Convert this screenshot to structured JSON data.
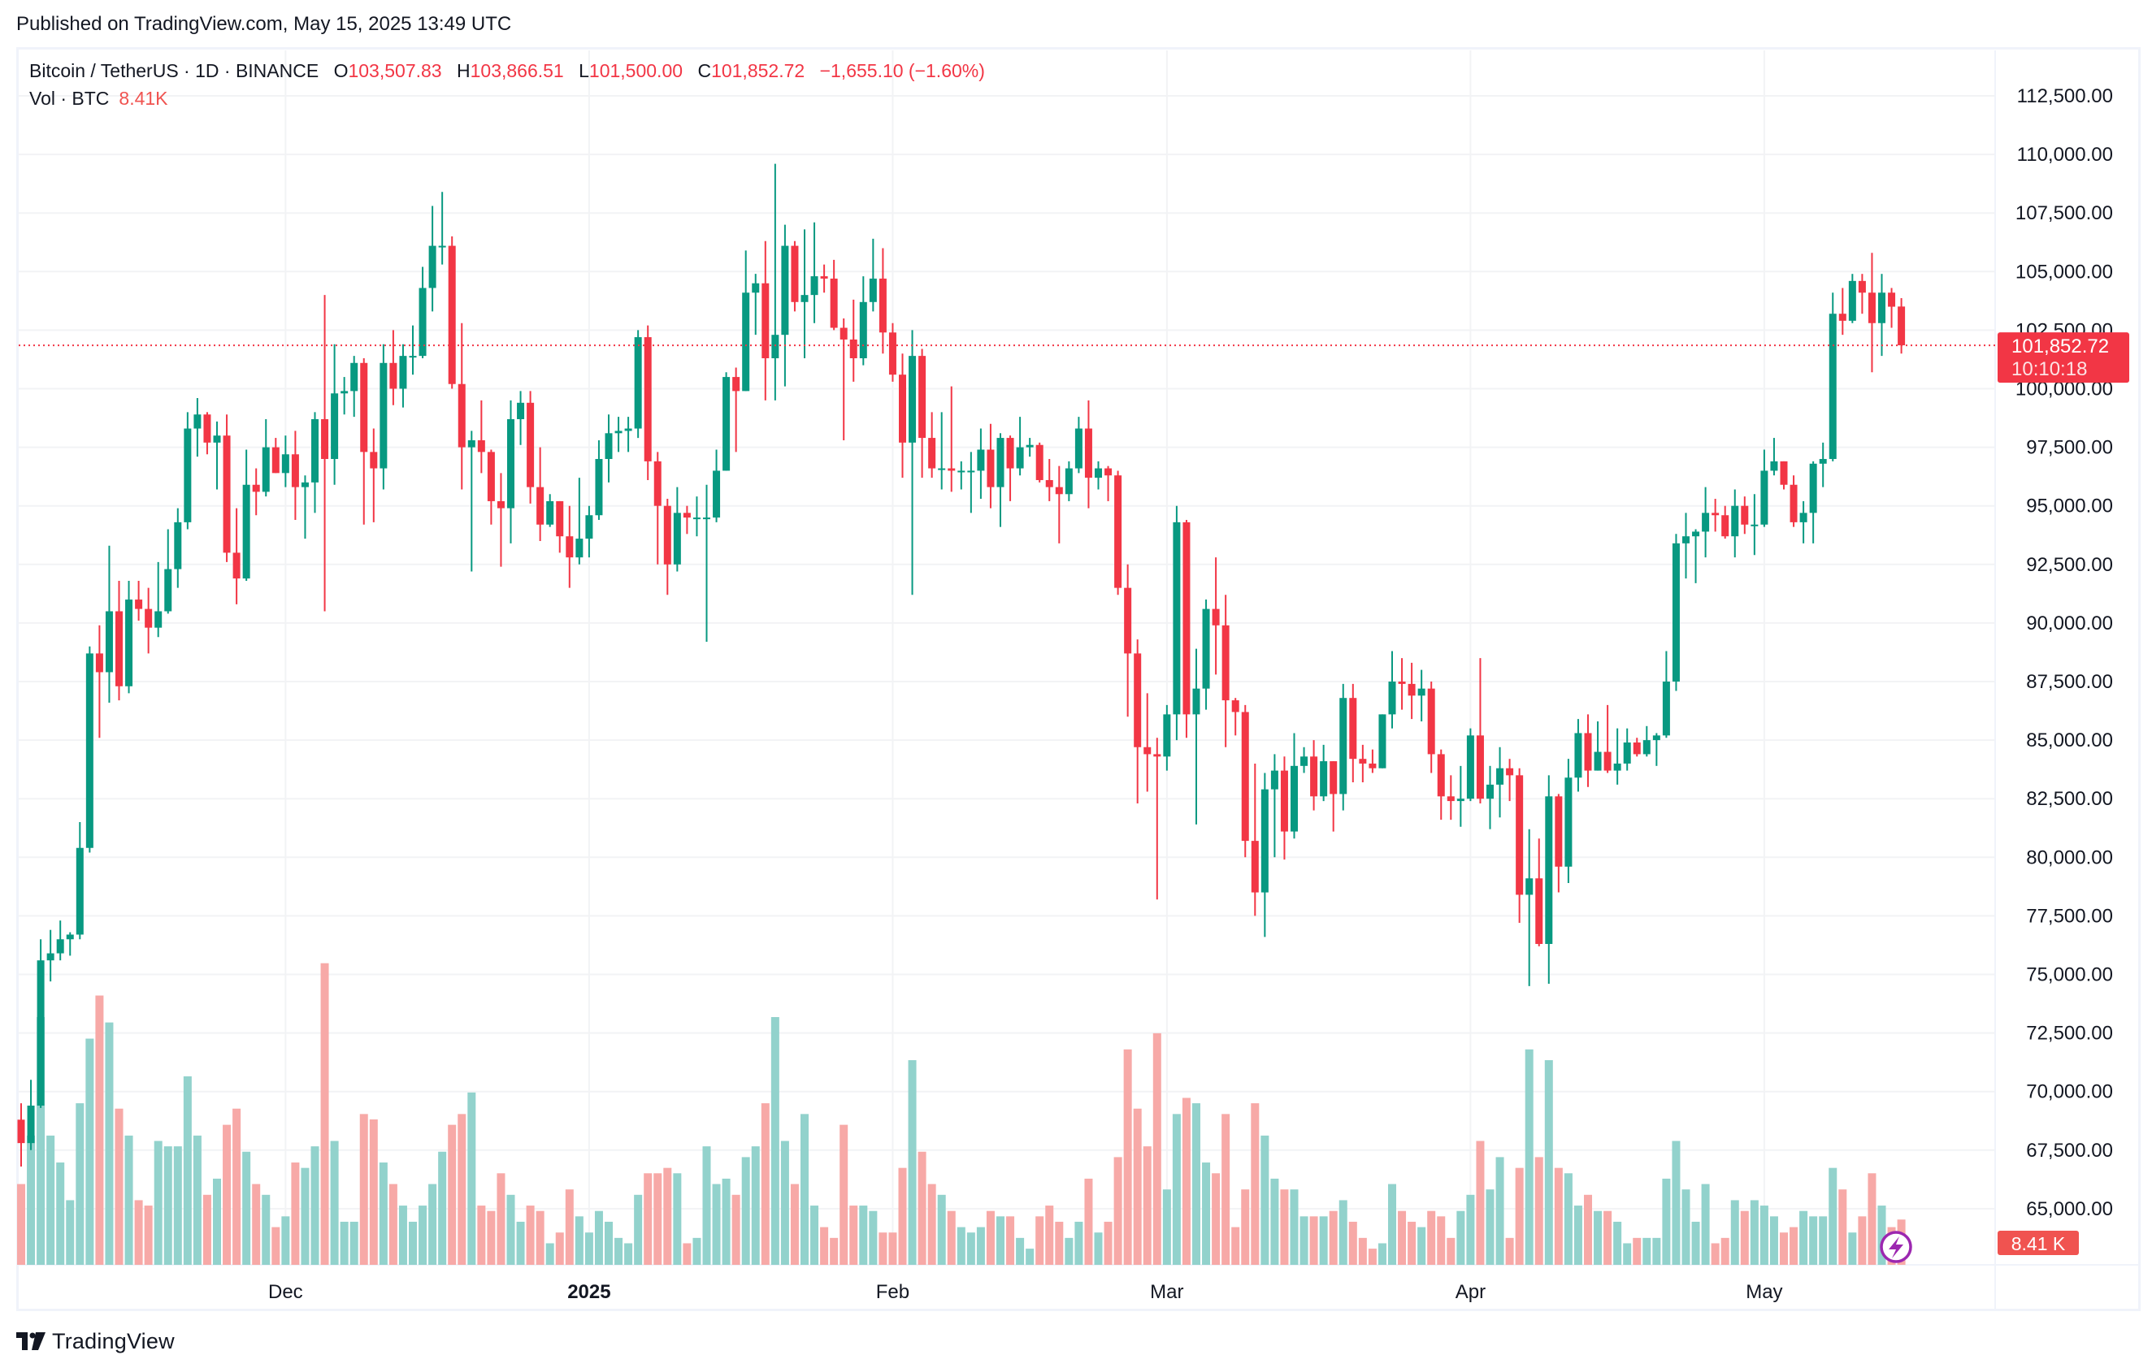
{
  "header": {
    "published": "Published on TradingView.com, May 15, 2025 13:49 UTC"
  },
  "legend": {
    "symbol": "Bitcoin / TetherUS · 1D · BINANCE",
    "o_label": "O",
    "o": "103,507.83",
    "h_label": "H",
    "h": "103,866.51",
    "l_label": "L",
    "l": "101,500.00",
    "c_label": "C",
    "c": "101,852.72",
    "change": "−1,655.10 (−1.60%)",
    "vol_label": "Vol · BTC",
    "vol": "8.41K"
  },
  "price_label": {
    "price": "101,852.72",
    "countdown": "10:10:18"
  },
  "volume_label": "8.41 K",
  "footer": {
    "brand": "TradingView"
  },
  "colors": {
    "up": "#089981",
    "down": "#F23645",
    "up_volume": "#92D2CC",
    "down_volume": "#F7A9A7",
    "event_icon": "#9C27B0"
  },
  "chart_data": {
    "type": "candlestick",
    "title": "Bitcoin / TetherUS · 1D · BINANCE",
    "ylim": [
      62500,
      113750
    ],
    "y_ticks": [
      "112,500.00",
      "110,000.00",
      "107,500.00",
      "105,000.00",
      "102,500.00",
      "100,000.00",
      "97,500.00",
      "95,000.00",
      "92,500.00",
      "90,000.00",
      "87,500.00",
      "85,000.00",
      "82,500.00",
      "80,000.00",
      "77,500.00",
      "75,000.00",
      "72,500.00",
      "70,000.00",
      "67,500.00",
      "65,000.00"
    ],
    "x_ticks": [
      {
        "label": "Dec",
        "date": "2024-12-01",
        "bold": false
      },
      {
        "label": "2025",
        "date": "2025-01-01",
        "bold": true
      },
      {
        "label": "Feb",
        "date": "2025-02-01",
        "bold": false
      },
      {
        "label": "Mar",
        "date": "2025-03-01",
        "bold": false
      },
      {
        "label": "Apr",
        "date": "2025-04-01",
        "bold": false
      },
      {
        "label": "May",
        "date": "2025-05-01",
        "bold": false
      }
    ],
    "start_date": "2024-11-04",
    "volume_unit": "K BTC",
    "columns": [
      "open",
      "high",
      "low",
      "close",
      "volume"
    ],
    "candles": [
      [
        68800,
        69500,
        66800,
        67800,
        15
      ],
      [
        67800,
        70500,
        67500,
        69400,
        24
      ],
      [
        69400,
        76500,
        69300,
        75600,
        46
      ],
      [
        75600,
        76900,
        74700,
        75900,
        24
      ],
      [
        75900,
        77300,
        75600,
        76500,
        19
      ],
      [
        76500,
        76800,
        75800,
        76700,
        12
      ],
      [
        76700,
        81500,
        76500,
        80400,
        30
      ],
      [
        80400,
        89000,
        80200,
        88700,
        42
      ],
      [
        88700,
        89900,
        85100,
        87900,
        50
      ],
      [
        87900,
        93300,
        86600,
        90500,
        45
      ],
      [
        90500,
        91800,
        86700,
        87300,
        29
      ],
      [
        87300,
        91800,
        87000,
        91000,
        24
      ],
      [
        91000,
        91800,
        90100,
        90600,
        12
      ],
      [
        90600,
        91500,
        88700,
        89800,
        11
      ],
      [
        89800,
        92600,
        89400,
        90500,
        23
      ],
      [
        90500,
        94000,
        90400,
        92300,
        22
      ],
      [
        92300,
        94900,
        91500,
        94300,
        22
      ],
      [
        94300,
        99000,
        94000,
        98300,
        35
      ],
      [
        98300,
        99600,
        97100,
        98900,
        24
      ],
      [
        98900,
        99000,
        97200,
        97700,
        13
      ],
      [
        97700,
        98600,
        95700,
        98000,
        16
      ],
      [
        98000,
        98900,
        92600,
        93000,
        26
      ],
      [
        93000,
        94900,
        90800,
        91900,
        29
      ],
      [
        91900,
        97400,
        91800,
        95900,
        21
      ],
      [
        95900,
        96600,
        94600,
        95600,
        15
      ],
      [
        95600,
        98700,
        95400,
        97500,
        13
      ],
      [
        97500,
        97900,
        96400,
        96400,
        7
      ],
      [
        96400,
        98000,
        95800,
        97200,
        9
      ],
      [
        97200,
        98200,
        94400,
        95800,
        19
      ],
      [
        95800,
        96300,
        93600,
        96000,
        18
      ],
      [
        96000,
        99000,
        94700,
        98700,
        22
      ],
      [
        98700,
        104000,
        90500,
        97000,
        56
      ],
      [
        97000,
        101900,
        95900,
        99800,
        23
      ],
      [
        99800,
        100500,
        98900,
        99900,
        8
      ],
      [
        99900,
        101400,
        98800,
        101100,
        8
      ],
      [
        101100,
        101300,
        94200,
        97300,
        28
      ],
      [
        97300,
        98300,
        94300,
        96600,
        27
      ],
      [
        96600,
        101900,
        95700,
        101100,
        19
      ],
      [
        101100,
        102500,
        99300,
        100000,
        15
      ],
      [
        100000,
        101900,
        99200,
        101400,
        11
      ],
      [
        101400,
        102700,
        100600,
        101400,
        8
      ],
      [
        101400,
        105200,
        101300,
        104300,
        11
      ],
      [
        104300,
        107800,
        103300,
        106100,
        15
      ],
      [
        106100,
        108400,
        105300,
        106100,
        21
      ],
      [
        106100,
        106500,
        100000,
        100200,
        26
      ],
      [
        100200,
        102800,
        95700,
        97500,
        28
      ],
      [
        97500,
        98200,
        92200,
        97800,
        32
      ],
      [
        97800,
        99500,
        96400,
        97300,
        11
      ],
      [
        97300,
        97400,
        94200,
        95200,
        10
      ],
      [
        95200,
        96400,
        92400,
        94900,
        17
      ],
      [
        94900,
        99500,
        93400,
        98700,
        13
      ],
      [
        98700,
        99900,
        97600,
        99400,
        8
      ],
      [
        99400,
        99900,
        95100,
        95800,
        11
      ],
      [
        95800,
        97500,
        93500,
        94200,
        10
      ],
      [
        94200,
        95500,
        94100,
        95200,
        4
      ],
      [
        95200,
        95200,
        93000,
        93700,
        6
      ],
      [
        93700,
        95000,
        91500,
        92800,
        14
      ],
      [
        92800,
        96200,
        92500,
        93600,
        9
      ],
      [
        93600,
        95000,
        92800,
        94600,
        6
      ],
      [
        94600,
        97800,
        94400,
        97000,
        10
      ],
      [
        97000,
        98900,
        96000,
        98100,
        8
      ],
      [
        98100,
        98800,
        97300,
        98200,
        5
      ],
      [
        98200,
        98800,
        97300,
        98300,
        4
      ],
      [
        98300,
        102500,
        97900,
        102200,
        13
      ],
      [
        102200,
        102700,
        96100,
        96900,
        17
      ],
      [
        96900,
        97300,
        92500,
        95000,
        17
      ],
      [
        95000,
        95300,
        91200,
        92500,
        18
      ],
      [
        92500,
        95800,
        92200,
        94700,
        17
      ],
      [
        94700,
        95000,
        93800,
        94500,
        4
      ],
      [
        94500,
        95400,
        93700,
        94500,
        5
      ],
      [
        94500,
        95900,
        89200,
        94500,
        22
      ],
      [
        94500,
        97400,
        94300,
        96500,
        15
      ],
      [
        96500,
        100700,
        96500,
        100500,
        16
      ],
      [
        100500,
        100900,
        97300,
        99900,
        13
      ],
      [
        99900,
        105900,
        99900,
        104100,
        20
      ],
      [
        104100,
        104900,
        102300,
        104500,
        22
      ],
      [
        104500,
        106300,
        99500,
        101300,
        30
      ],
      [
        101300,
        109600,
        99500,
        102300,
        46
      ],
      [
        102300,
        107000,
        100100,
        106100,
        23
      ],
      [
        106100,
        106300,
        103300,
        103700,
        15
      ],
      [
        103700,
        106800,
        101300,
        104000,
        28
      ],
      [
        104000,
        107100,
        102800,
        104800,
        11
      ],
      [
        104800,
        105300,
        104100,
        104700,
        7
      ],
      [
        104700,
        105500,
        102500,
        102600,
        5
      ],
      [
        102600,
        103000,
        97800,
        102100,
        26
      ],
      [
        102100,
        103800,
        100300,
        101300,
        11
      ],
      [
        101300,
        104800,
        101000,
        103700,
        11
      ],
      [
        103700,
        106400,
        103300,
        104700,
        10
      ],
      [
        104700,
        106000,
        101500,
        102400,
        6
      ],
      [
        102400,
        102800,
        100300,
        100600,
        6
      ],
      [
        100600,
        101500,
        96200,
        97700,
        18
      ],
      [
        97700,
        102500,
        91200,
        101400,
        38
      ],
      [
        101400,
        101700,
        96200,
        97900,
        21
      ],
      [
        97900,
        99000,
        96200,
        96600,
        15
      ],
      [
        96600,
        99000,
        95700,
        96600,
        13
      ],
      [
        96600,
        100100,
        95600,
        96500,
        10
      ],
      [
        96500,
        96900,
        95700,
        96500,
        7
      ],
      [
        96500,
        97300,
        94700,
        96500,
        6
      ],
      [
        96500,
        98300,
        95300,
        97400,
        7
      ],
      [
        97400,
        98500,
        94900,
        95800,
        10
      ],
      [
        95800,
        98100,
        94100,
        97900,
        9
      ],
      [
        97900,
        98000,
        95200,
        96600,
        9
      ],
      [
        96600,
        98800,
        96300,
        97500,
        5
      ],
      [
        97500,
        97900,
        97100,
        97600,
        3
      ],
      [
        97600,
        97700,
        96000,
        96100,
        9
      ],
      [
        96100,
        97000,
        95200,
        95800,
        11
      ],
      [
        95800,
        96700,
        93400,
        95500,
        8
      ],
      [
        95500,
        96900,
        95200,
        96600,
        5
      ],
      [
        96600,
        98800,
        96400,
        98300,
        8
      ],
      [
        98300,
        99500,
        94900,
        96200,
        16
      ],
      [
        96200,
        96900,
        95700,
        96600,
        6
      ],
      [
        96600,
        96700,
        95200,
        96300,
        8
      ],
      [
        96300,
        96500,
        91200,
        91500,
        20
      ],
      [
        91500,
        92500,
        86000,
        88700,
        40
      ],
      [
        88700,
        89300,
        82300,
        84700,
        29
      ],
      [
        84700,
        87000,
        82800,
        84400,
        22
      ],
      [
        84400,
        85100,
        78200,
        84300,
        43
      ],
      [
        84300,
        86500,
        83700,
        86100,
        14
      ],
      [
        86100,
        95000,
        85000,
        94300,
        28
      ],
      [
        94300,
        94400,
        85100,
        86100,
        31
      ],
      [
        86100,
        88900,
        81400,
        87200,
        30
      ],
      [
        87200,
        91000,
        86300,
        90600,
        19
      ],
      [
        90600,
        92800,
        87800,
        89900,
        17
      ],
      [
        89900,
        91200,
        84700,
        86700,
        28
      ],
      [
        86700,
        86800,
        85200,
        86200,
        7
      ],
      [
        86200,
        86500,
        80000,
        80700,
        14
      ],
      [
        80700,
        84000,
        77500,
        78500,
        30
      ],
      [
        78500,
        83600,
        76600,
        82900,
        24
      ],
      [
        82900,
        84400,
        80000,
        83700,
        16
      ],
      [
        83700,
        84300,
        79900,
        81100,
        14
      ],
      [
        81100,
        85300,
        80800,
        83900,
        14
      ],
      [
        83900,
        84700,
        83600,
        84300,
        9
      ],
      [
        84300,
        85000,
        82000,
        82600,
        9
      ],
      [
        82600,
        84800,
        82400,
        84100,
        9
      ],
      [
        84100,
        84100,
        81100,
        82700,
        10
      ],
      [
        82700,
        87400,
        82000,
        86800,
        12
      ],
      [
        86800,
        87400,
        83200,
        84200,
        8
      ],
      [
        84200,
        84800,
        83200,
        84000,
        5
      ],
      [
        84000,
        84600,
        83600,
        83800,
        3
      ],
      [
        83800,
        86100,
        83800,
        86100,
        4
      ],
      [
        86100,
        88800,
        85500,
        87500,
        15
      ],
      [
        87500,
        88500,
        86300,
        87400,
        10
      ],
      [
        87400,
        88300,
        85900,
        86900,
        8
      ],
      [
        86900,
        88000,
        85800,
        87200,
        7
      ],
      [
        87200,
        87500,
        83600,
        84400,
        10
      ],
      [
        84400,
        84600,
        81600,
        82600,
        9
      ],
      [
        82600,
        83500,
        81600,
        82400,
        5
      ],
      [
        82400,
        83900,
        81300,
        82500,
        10
      ],
      [
        82500,
        85500,
        82400,
        85200,
        13
      ],
      [
        85200,
        88500,
        82300,
        82500,
        23
      ],
      [
        82500,
        83900,
        81200,
        83100,
        14
      ],
      [
        83100,
        84700,
        81700,
        83800,
        20
      ],
      [
        83800,
        84200,
        82400,
        83500,
        5
      ],
      [
        83500,
        83800,
        77200,
        78400,
        18
      ],
      [
        78400,
        81200,
        74500,
        79100,
        40
      ],
      [
        79100,
        80800,
        76200,
        76300,
        20
      ],
      [
        76300,
        83500,
        74600,
        82600,
        38
      ],
      [
        82600,
        82700,
        78500,
        79600,
        18
      ],
      [
        79600,
        84200,
        78900,
        83400,
        17
      ],
      [
        83400,
        85900,
        82800,
        85300,
        11
      ],
      [
        85300,
        86100,
        83000,
        83700,
        13
      ],
      [
        83700,
        85800,
        83700,
        84500,
        10
      ],
      [
        84500,
        86500,
        83600,
        83700,
        10
      ],
      [
        83700,
        85500,
        83100,
        84000,
        8
      ],
      [
        84000,
        85500,
        83700,
        84900,
        4
      ],
      [
        84900,
        85100,
        84300,
        84400,
        5
      ],
      [
        84400,
        85600,
        84300,
        85000,
        5
      ],
      [
        85000,
        85300,
        83900,
        85200,
        5
      ],
      [
        85200,
        88800,
        85100,
        87500,
        16
      ],
      [
        87500,
        93800,
        87100,
        93400,
        23
      ],
      [
        93400,
        94700,
        91900,
        93700,
        14
      ],
      [
        93700,
        94000,
        91700,
        93900,
        8
      ],
      [
        93900,
        95800,
        92800,
        94700,
        15
      ],
      [
        94700,
        95300,
        93900,
        94600,
        4
      ],
      [
        94600,
        95000,
        93600,
        93700,
        5
      ],
      [
        93700,
        95700,
        92800,
        95000,
        12
      ],
      [
        95000,
        95400,
        93800,
        94200,
        10
      ],
      [
        94200,
        95500,
        92900,
        94200,
        12
      ],
      [
        94200,
        97400,
        94100,
        96500,
        11
      ],
      [
        96500,
        97900,
        96300,
        96900,
        9
      ],
      [
        96900,
        96900,
        95700,
        95900,
        6
      ],
      [
        95900,
        96300,
        94100,
        94300,
        7
      ],
      [
        94300,
        95200,
        93400,
        94700,
        10
      ],
      [
        94700,
        96900,
        93400,
        96800,
        9
      ],
      [
        96800,
        97700,
        95800,
        97000,
        9
      ],
      [
        97000,
        104100,
        96900,
        103200,
        18
      ],
      [
        103200,
        104300,
        102300,
        102900,
        14
      ],
      [
        102900,
        104900,
        102800,
        104600,
        6
      ],
      [
        104600,
        104900,
        103200,
        104100,
        9
      ],
      [
        104100,
        105800,
        100700,
        102800,
        17
      ],
      [
        102800,
        104900,
        101400,
        104100,
        11
      ],
      [
        104100,
        104300,
        102600,
        103500,
        7
      ],
      [
        103507.83,
        103866.51,
        101500,
        101852.72,
        8.41
      ]
    ],
    "last_price": 101852.72
  }
}
